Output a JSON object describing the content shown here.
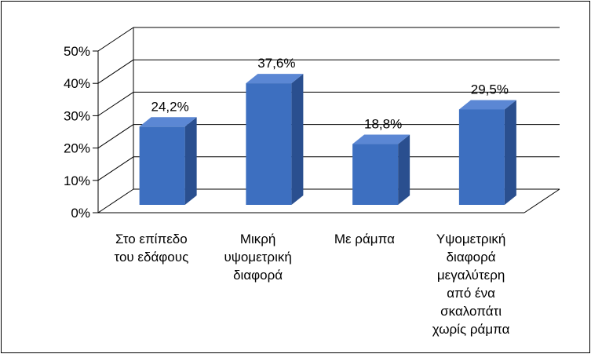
{
  "chart_data": {
    "type": "bar",
    "title": "",
    "xlabel": "",
    "ylabel": "",
    "categories": [
      [
        "Στο επίπεδο",
        "του εδάφους"
      ],
      [
        "Μικρή",
        "υψομετρική",
        "διαφορά"
      ],
      [
        "Με ράμπα"
      ],
      [
        "Υψομετρική",
        "διαφορά",
        "μεγαλύτερη",
        "από ένα",
        "σκαλοπάτι",
        "χωρίς ράμπα"
      ]
    ],
    "values": [
      24.2,
      37.6,
      18.8,
      29.5
    ],
    "data_labels": [
      "24,2%",
      "37,6%",
      "18,8%",
      "29,5%"
    ],
    "yticks": [
      "0%",
      "10%",
      "20%",
      "30%",
      "40%",
      "50%"
    ],
    "ylim": [
      0,
      50
    ],
    "grid": true,
    "legend": "none",
    "colors": {
      "bar_front": "#3d6fc0",
      "bar_side": "#2a4f8f",
      "bar_top": "#5b87d4",
      "grid": "#000000"
    }
  }
}
